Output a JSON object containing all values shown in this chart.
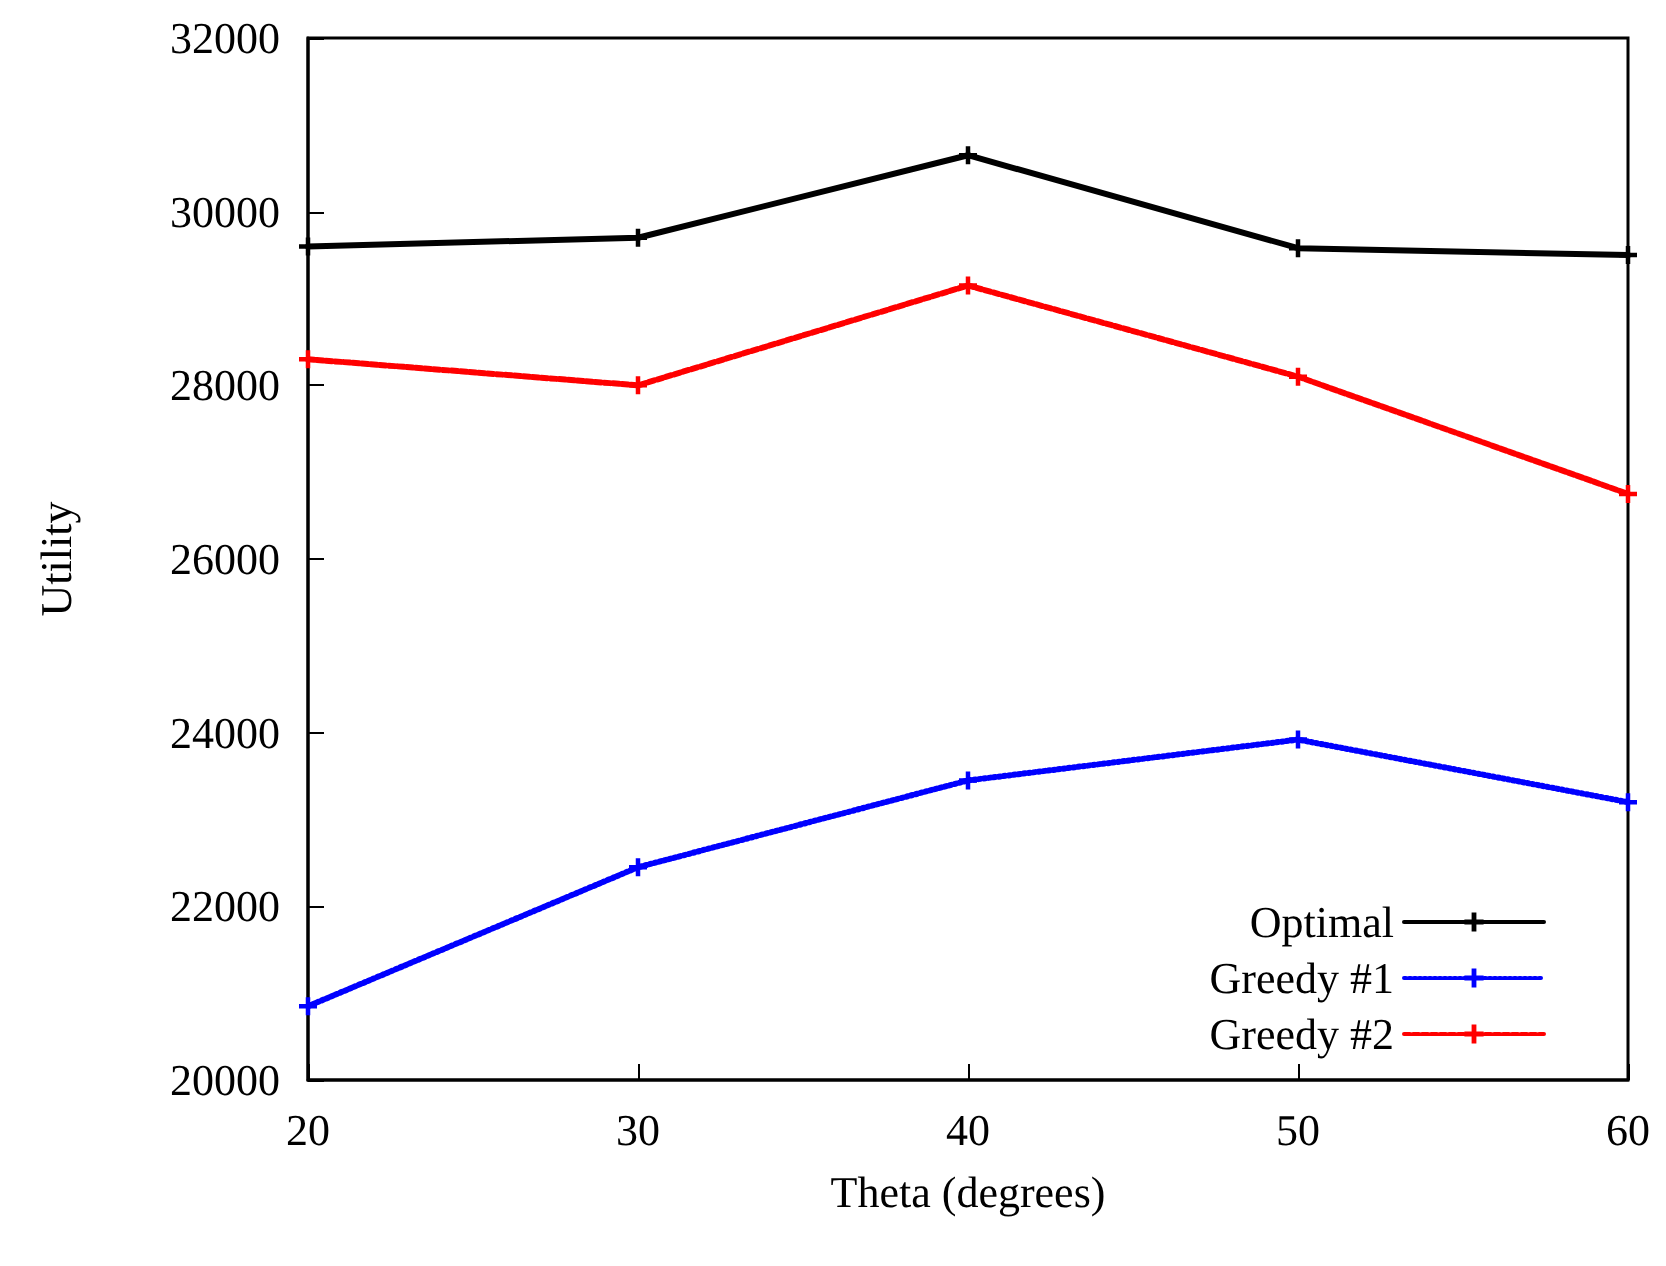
{
  "chart_data": {
    "type": "line",
    "xlabel": "Theta (degrees)",
    "ylabel": "Utility",
    "x": [
      20,
      30,
      40,
      50,
      60
    ],
    "series": [
      {
        "name": "Optimal",
        "color": "#000000",
        "values": [
          29600,
          29700,
          30650,
          29580,
          29500
        ],
        "line_style": "solid",
        "marker": "cross"
      },
      {
        "name": "Greedy #1",
        "color": "#0000ff",
        "values": [
          20850,
          22450,
          23450,
          23920,
          23200
        ],
        "line_style": "dotted",
        "marker": "cross"
      },
      {
        "name": "Greedy #2",
        "color": "#ff0000",
        "values": [
          28300,
          28000,
          29150,
          28100,
          26750
        ],
        "line_style": "dashed",
        "marker": "cross"
      }
    ],
    "xlim": [
      20,
      60
    ],
    "xticks": [
      20,
      30,
      40,
      50,
      60
    ],
    "ylim": [
      20000,
      32000
    ],
    "yticks": [
      20000,
      22000,
      24000,
      26000,
      28000,
      30000,
      32000
    ],
    "grid": false,
    "legend": "bottom right"
  }
}
